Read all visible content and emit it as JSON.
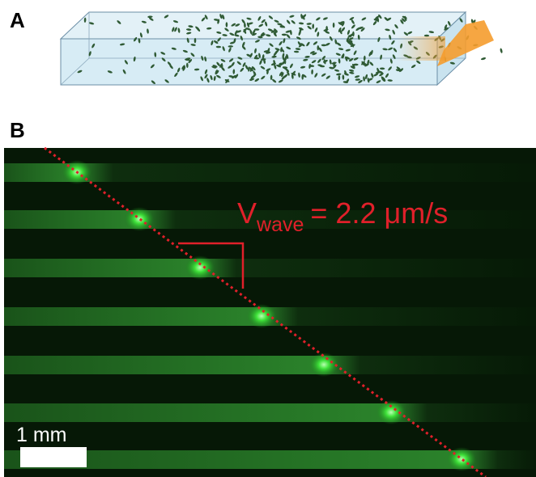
{
  "panels": [
    {
      "label": "A"
    },
    {
      "label": "B",
      "annotation": {
        "symbol": "V",
        "subscript": "wave",
        "text": "= 2.2 μm/s"
      },
      "scale_bar": "1 mm"
    }
  ]
}
